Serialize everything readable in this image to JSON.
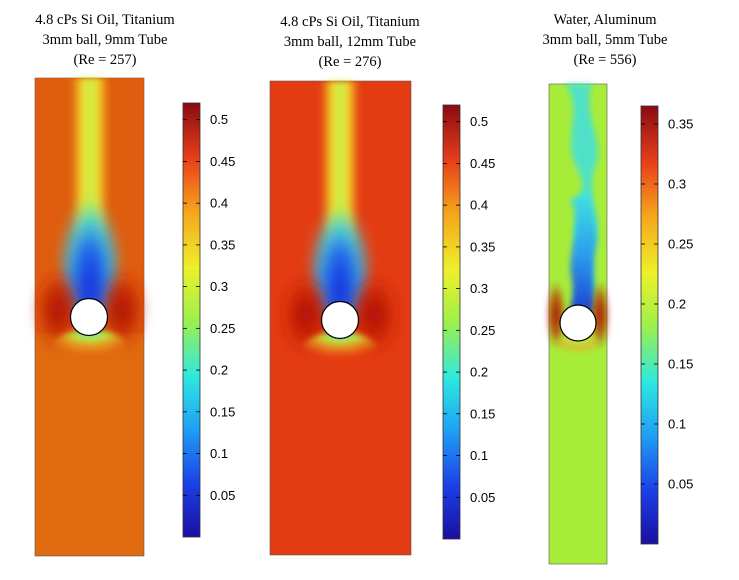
{
  "panels": [
    {
      "title": [
        "4.8 cPs Si Oil, Titanium",
        "3mm ball, 9mm Tube",
        "(Re = 257)"
      ],
      "colorbar": {
        "min": 0,
        "max": 0.52,
        "ticks": [
          "0.05",
          "0.1",
          "0.15",
          "0.2",
          "0.25",
          "0.3",
          "0.35",
          "0.4",
          "0.45",
          "0.5"
        ],
        "tick_values": [
          0.05,
          0.1,
          0.15,
          0.2,
          0.25,
          0.3,
          0.35,
          0.4,
          0.45,
          0.5
        ]
      },
      "background_color": "#e06a10",
      "upstream_color": "#d96e12",
      "side_color": "#c01e08"
    },
    {
      "title": [
        "4.8 cPs Si Oil, Titanium",
        "3mm ball, 12mm Tube",
        "(Re = 276)"
      ],
      "colorbar": {
        "min": 0,
        "max": 0.52,
        "ticks": [
          "0.05",
          "0.1",
          "0.15",
          "0.2",
          "0.25",
          "0.3",
          "0.35",
          "0.4",
          "0.45",
          "0.5"
        ],
        "tick_values": [
          0.05,
          0.1,
          0.15,
          0.2,
          0.25,
          0.3,
          0.35,
          0.4,
          0.45,
          0.5
        ]
      },
      "background_color": "#e43c12",
      "upstream_color": "#e23a10",
      "side_color": "#b81406"
    },
    {
      "title": [
        "Water, Aluminum",
        "3mm ball, 5mm Tube",
        "(Re = 556)"
      ],
      "colorbar": {
        "min": 0,
        "max": 0.365,
        "ticks": [
          "0.05",
          "0.1",
          "0.15",
          "0.2",
          "0.25",
          "0.3",
          "0.35"
        ],
        "tick_values": [
          0.05,
          0.1,
          0.15,
          0.2,
          0.25,
          0.3,
          0.35
        ]
      },
      "background_color": "#a8ec3a",
      "upstream_color": "#a6ec3c",
      "side_color": "#d01a08"
    }
  ]
}
